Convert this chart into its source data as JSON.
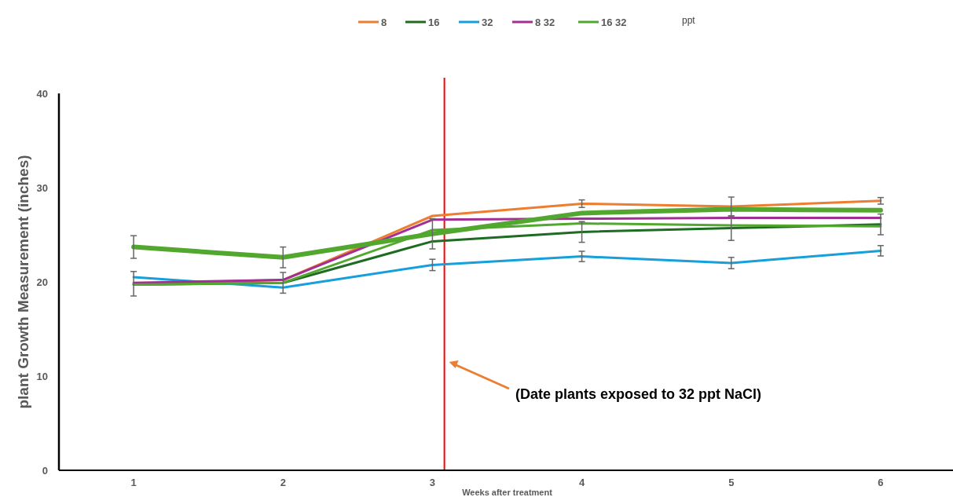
{
  "chart_data": {
    "type": "line",
    "xlabel": "Weeks after treatment",
    "ylabel": "plant Growth Measurement (inches)",
    "legend_title": "ppt",
    "legend": "top",
    "grid": false,
    "marker": "none",
    "line_style": "solid",
    "x": [
      1,
      2,
      3,
      4,
      5,
      6
    ],
    "xlim": [
      0.5,
      6.5
    ],
    "xticks": [
      1,
      2,
      3,
      4,
      5,
      6
    ],
    "ylim": [
      0,
      40
    ],
    "yticks": [
      0,
      10,
      20,
      30,
      40
    ],
    "series": [
      {
        "name": "8",
        "color": "#ed7d31",
        "values": [
          19.8,
          20.2,
          27.0,
          28.3,
          28.0,
          28.6
        ],
        "errors": [
          1.3,
          null,
          null,
          0.4,
          1.0,
          0.35
        ]
      },
      {
        "name": "16",
        "color": "#1e6b22",
        "values": [
          19.7,
          19.9,
          24.3,
          25.3,
          25.7,
          26.1
        ],
        "errors": [
          null,
          1.1,
          null,
          1.1,
          1.3,
          1.1
        ]
      },
      {
        "name": "32",
        "color": "#159fdb",
        "values": [
          20.5,
          19.4,
          21.8,
          22.7,
          22.0,
          23.3
        ],
        "errors": [
          null,
          null,
          0.6,
          0.55,
          0.6,
          0.55
        ]
      },
      {
        "name": "8 32",
        "color": "#a12f94",
        "values": [
          19.9,
          20.2,
          26.6,
          26.7,
          26.8,
          26.8
        ]
      },
      {
        "name": "16 32",
        "color": "#52a82f",
        "values": [
          19.7,
          19.9,
          25.5,
          26.2,
          26.0,
          25.9
        ]
      },
      {
        "color": "#52a82f",
        "values": [
          23.7,
          22.6,
          25.1,
          27.3,
          27.7,
          27.6
        ],
        "errors": [
          1.2,
          1.1,
          1.6,
          null,
          null,
          null
        ]
      }
    ],
    "ref_lines": [
      {
        "axis": "x",
        "value": 3.08,
        "color": "#ff0000"
      }
    ],
    "annotations": [
      "(Date plants exposed to 32 ppt NaCl)"
    ]
  }
}
